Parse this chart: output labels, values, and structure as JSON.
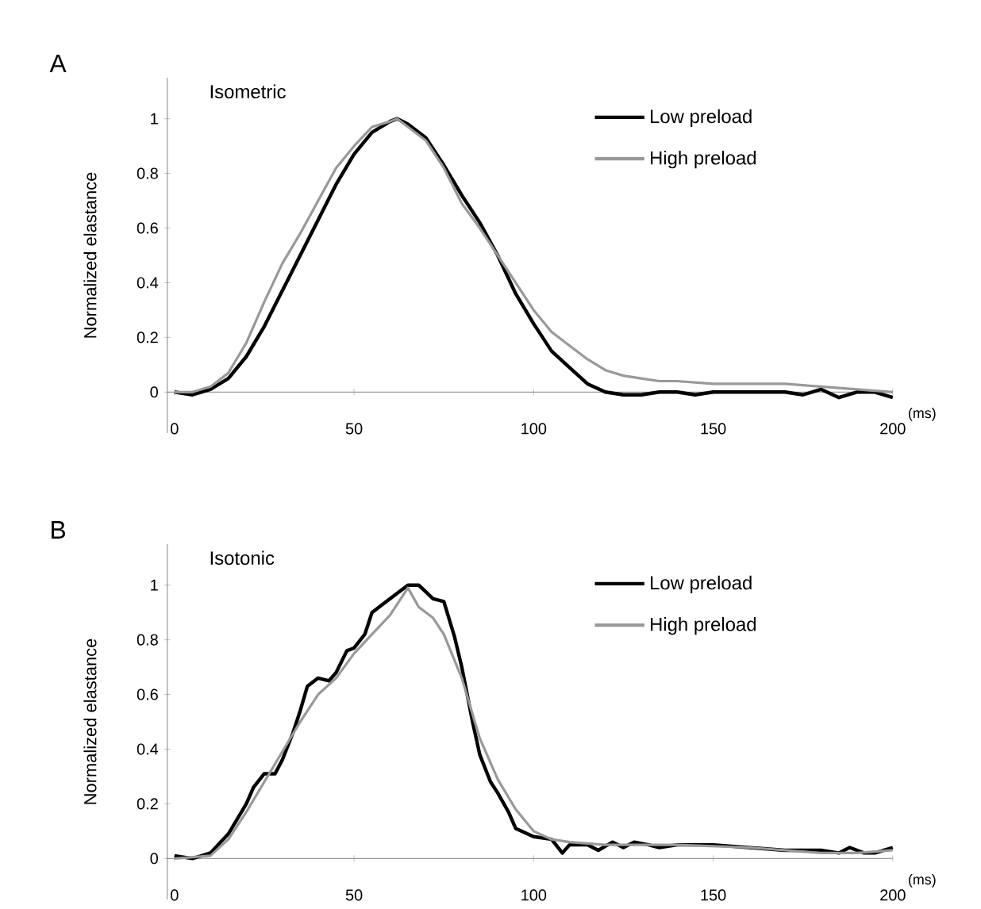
{
  "chart_data": [
    {
      "type": "line",
      "title": "Isometric",
      "annotations": [
        "A"
      ],
      "xlabel": "(ms)",
      "ylabel": "Normalized elastance",
      "xlim": [
        -2,
        200
      ],
      "ylim": [
        -0.15,
        1.15
      ],
      "xticks": [
        0,
        50,
        100,
        150,
        200
      ],
      "yticks": [
        0,
        0.2,
        0.4,
        0.6,
        0.8,
        1
      ],
      "legend": "top right",
      "series": [
        {
          "name": "Low preload",
          "color": "#000000",
          "x": [
            0,
            5,
            10,
            15,
            20,
            25,
            30,
            35,
            40,
            45,
            50,
            55,
            60,
            62,
            65,
            70,
            75,
            80,
            85,
            90,
            95,
            100,
            105,
            110,
            115,
            120,
            125,
            130,
            135,
            140,
            145,
            150,
            160,
            170,
            175,
            180,
            185,
            190,
            195,
            200
          ],
          "values": [
            0,
            -0.01,
            0.01,
            0.05,
            0.13,
            0.24,
            0.37,
            0.5,
            0.63,
            0.76,
            0.87,
            0.95,
            0.99,
            1.0,
            0.98,
            0.93,
            0.83,
            0.72,
            0.62,
            0.5,
            0.36,
            0.25,
            0.15,
            0.09,
            0.03,
            0.0,
            -0.01,
            -0.01,
            0.0,
            0.0,
            -0.01,
            0.0,
            0.0,
            0.0,
            -0.01,
            0.01,
            -0.02,
            0.0,
            0.0,
            -0.02
          ]
        },
        {
          "name": "High preload",
          "color": "#999999",
          "x": [
            0,
            5,
            10,
            15,
            20,
            25,
            30,
            35,
            40,
            45,
            50,
            55,
            60,
            62,
            65,
            70,
            75,
            80,
            85,
            90,
            95,
            100,
            105,
            110,
            115,
            120,
            125,
            130,
            135,
            140,
            150,
            160,
            170,
            180,
            190,
            200
          ],
          "values": [
            0,
            0.0,
            0.02,
            0.07,
            0.18,
            0.33,
            0.47,
            0.58,
            0.7,
            0.82,
            0.9,
            0.97,
            0.99,
            1.0,
            0.97,
            0.92,
            0.82,
            0.69,
            0.6,
            0.5,
            0.4,
            0.3,
            0.22,
            0.17,
            0.12,
            0.08,
            0.06,
            0.05,
            0.04,
            0.04,
            0.03,
            0.03,
            0.03,
            0.02,
            0.01,
            0.0
          ]
        }
      ]
    },
    {
      "type": "line",
      "title": "Isotonic",
      "annotations": [
        "B"
      ],
      "xlabel": "(ms)",
      "ylabel": "Normalized elastance",
      "xlim": [
        -2,
        200
      ],
      "ylim": [
        -0.15,
        1.15
      ],
      "xticks": [
        0,
        50,
        100,
        150,
        200
      ],
      "yticks": [
        0,
        0.2,
        0.4,
        0.6,
        0.8,
        1
      ],
      "legend": "top right",
      "series": [
        {
          "name": "Low preload",
          "color": "#000000",
          "x": [
            0,
            5,
            10,
            15,
            20,
            22,
            25,
            28,
            30,
            33,
            35,
            37,
            40,
            43,
            45,
            48,
            50,
            53,
            55,
            58,
            62,
            65,
            68,
            72,
            75,
            78,
            80,
            83,
            85,
            88,
            90,
            93,
            95,
            100,
            105,
            108,
            110,
            115,
            118,
            122,
            125,
            128,
            132,
            135,
            140,
            150,
            160,
            170,
            180,
            185,
            188,
            192,
            195,
            200
          ],
          "values": [
            0.01,
            0.0,
            0.02,
            0.09,
            0.2,
            0.26,
            0.31,
            0.31,
            0.36,
            0.46,
            0.54,
            0.63,
            0.66,
            0.65,
            0.68,
            0.76,
            0.77,
            0.82,
            0.9,
            0.93,
            0.97,
            1.0,
            1.0,
            0.95,
            0.94,
            0.81,
            0.7,
            0.5,
            0.38,
            0.28,
            0.24,
            0.17,
            0.11,
            0.08,
            0.07,
            0.02,
            0.05,
            0.05,
            0.03,
            0.06,
            0.04,
            0.06,
            0.05,
            0.04,
            0.05,
            0.05,
            0.04,
            0.03,
            0.03,
            0.02,
            0.04,
            0.02,
            0.02,
            0.04
          ]
        },
        {
          "name": "High preload",
          "color": "#999999",
          "x": [
            0,
            10,
            15,
            20,
            25,
            30,
            35,
            40,
            45,
            50,
            55,
            60,
            65,
            68,
            72,
            75,
            80,
            85,
            90,
            95,
            100,
            105,
            110,
            120,
            140,
            160,
            180,
            190,
            200
          ],
          "values": [
            0,
            0.01,
            0.07,
            0.17,
            0.28,
            0.39,
            0.5,
            0.6,
            0.66,
            0.75,
            0.82,
            0.89,
            0.99,
            0.92,
            0.88,
            0.82,
            0.66,
            0.44,
            0.29,
            0.18,
            0.1,
            0.07,
            0.06,
            0.05,
            0.05,
            0.04,
            0.02,
            0.02,
            0.03
          ]
        }
      ]
    }
  ]
}
